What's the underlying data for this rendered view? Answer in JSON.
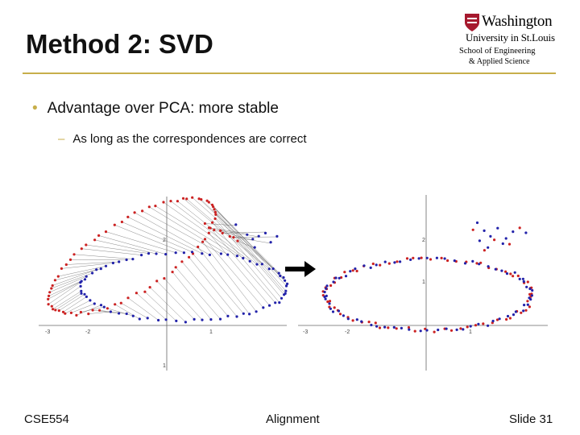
{
  "slide": {
    "title": "Method 2: SVD",
    "bullet": "Advantage over PCA: more stable",
    "sub_bullet": "As long as the correspondences are correct"
  },
  "logo": {
    "line1": "Washington",
    "line2": "University in St.Louis",
    "line3": "School of Engineering",
    "line4": "& Applied Science"
  },
  "footer": {
    "course": "CSE554",
    "topic": "Alignment",
    "slide_number": "Slide 31"
  },
  "colors": {
    "accent": "#c7ae4a",
    "red_points": "#cc2222",
    "blue_points": "#2222aa"
  },
  "chart_data": [
    {
      "type": "scatter",
      "title": "",
      "xlim": [
        -3.1,
        2.9
      ],
      "ylim": [
        -1.2,
        3.1
      ],
      "x_ticks": [
        "-3",
        "-2",
        "1"
      ],
      "y_ticks": [
        "2",
        "1"
      ],
      "correspondence_lines": true,
      "series": [
        {
          "color": "red",
          "shape": "ellipse rotated about 30 degrees, centered near (-1.4, 1.2)"
        },
        {
          "color": "blue",
          "shape": "ellipse centered near (0, 0.8) with outlier points near (1.7, 2.0)"
        }
      ]
    },
    {
      "type": "scatter",
      "title": "",
      "xlim": [
        -3.1,
        2.9
      ],
      "ylim": [
        -1.2,
        3.1
      ],
      "x_ticks": [
        "-3",
        "-2",
        "1"
      ],
      "y_ticks": [
        "2",
        "1"
      ],
      "correspondence_lines": false,
      "series": [
        {
          "color": "red",
          "shape": "ellipse centered near (0, 0.2) aligned with blue"
        },
        {
          "color": "blue",
          "shape": "ellipse centered near (0, 0.2) with outlier points near (1.7, 2.0)"
        }
      ]
    }
  ]
}
